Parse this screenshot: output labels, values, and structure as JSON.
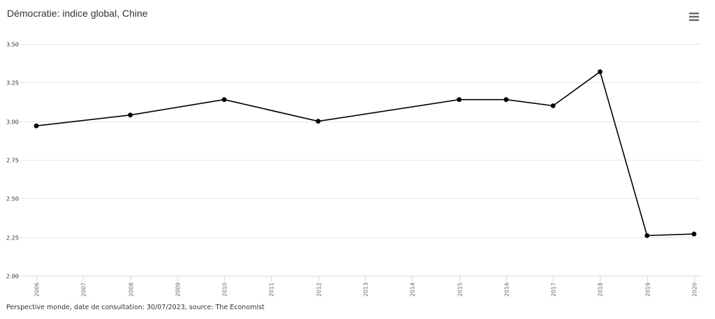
{
  "title": "Démocratie: indice global, Chine",
  "menu_icon": "hamburger-menu-icon",
  "source_note": "Perspective monde, date de consultation: 30/07/2023, source: The Economist",
  "colors": {
    "line": "#000000",
    "grid": "#e6e6e6",
    "axis": "#ccd6eb",
    "text": "#333333",
    "tick_text": "#666666",
    "menu": "#666666"
  },
  "chart_data": {
    "type": "line",
    "title": "Démocratie: indice global, Chine",
    "xlabel": "",
    "ylabel": "",
    "categories": [
      "2006",
      "2007",
      "2008",
      "2009",
      "2010",
      "2011",
      "2012",
      "2013",
      "2014",
      "2015",
      "2016",
      "2017",
      "2018",
      "2019",
      "2020"
    ],
    "series": [
      {
        "values": [
          2.97,
          null,
          3.04,
          null,
          3.14,
          null,
          3.0,
          null,
          null,
          3.14,
          3.14,
          3.1,
          3.32,
          2.26,
          2.27
        ]
      }
    ],
    "y_ticks": [
      "2.00",
      "2.25",
      "2.50",
      "2.75",
      "3.00",
      "3.25",
      "3.50"
    ],
    "ylim": [
      2.0,
      3.5
    ],
    "grid": true,
    "legend": "none"
  }
}
